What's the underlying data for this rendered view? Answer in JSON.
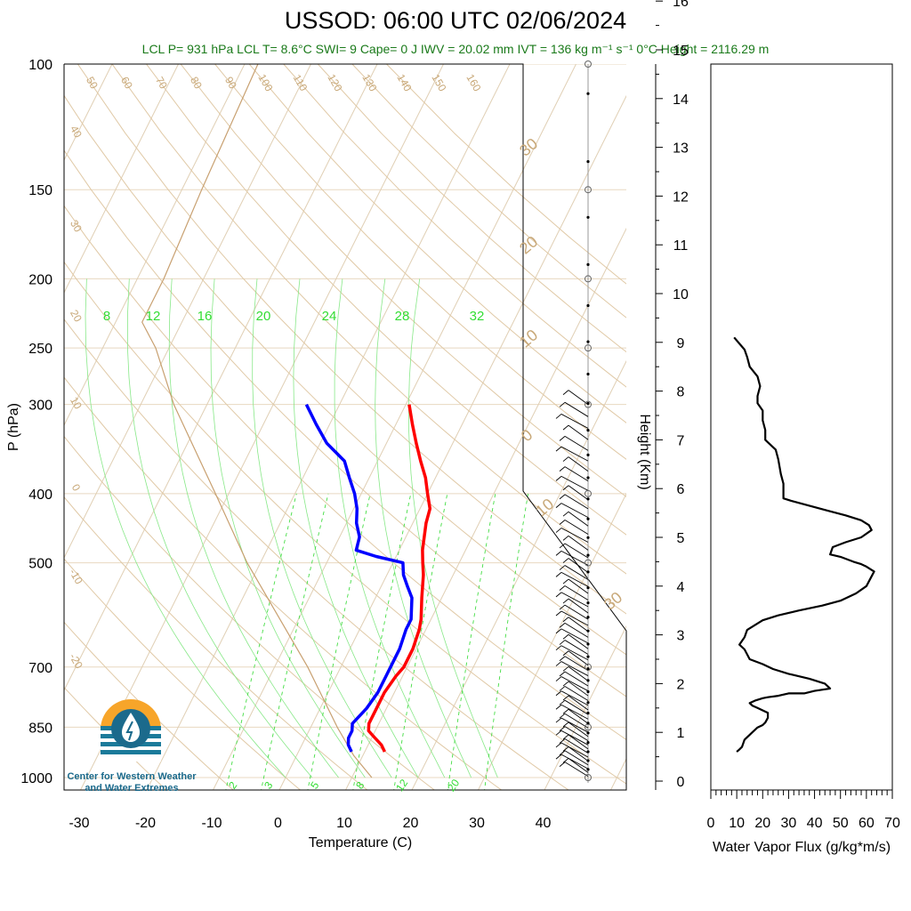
{
  "title": "USSOD: 06:00 UTC 02/06/2024",
  "subtitle": "LCL P= 931 hPa  LCL T= 8.6°C  SWI= 9  Cape= 0 J  IWV = 20.02 mm  IVT = 136 kg m⁻¹ s⁻¹  0°C Height = 2116.29 m",
  "logo": {
    "line1": "Center for Western Weather",
    "line2": "and Water Extremes"
  },
  "colors": {
    "temperature": "#ff0000",
    "dewpoint": "#0000ff",
    "mixing_ratio": "#33dd33",
    "adiabat": "#c8a878",
    "subtitle": "#1a7a1a"
  },
  "chart_data": [
    {
      "type": "line",
      "name": "skew-t",
      "xlabel": "Temperature (C)",
      "ylabel": "P (hPa)",
      "x_ticks": [
        "-30",
        "-20",
        "-10",
        "0",
        "10",
        "20",
        "30",
        "40"
      ],
      "y_ticks": [
        "100",
        "150",
        "200",
        "250",
        "300",
        "400",
        "500",
        "700",
        "850",
        "1000"
      ],
      "xlim": [
        -34,
        52
      ],
      "ylim": [
        1050,
        100
      ],
      "mixing_ratio_labels_top": [
        "8",
        "12",
        "16",
        "20",
        "24",
        "28",
        "32"
      ],
      "mixing_ratio_labels_bottom": [
        "2",
        "3",
        "5",
        "8",
        "12",
        "20"
      ],
      "dry_adiabat_labels_top": [
        "50",
        "60",
        "70",
        "80",
        "90",
        "100",
        "110",
        "120",
        "130",
        "140",
        "150",
        "160"
      ],
      "dry_adiabat_labels_left": [
        "40",
        "30",
        "20",
        "10",
        "0",
        "-10",
        "-20"
      ],
      "moist_adiabat_labels_right": [
        "30",
        "20",
        "10",
        "0",
        "10",
        "30"
      ],
      "series": [
        {
          "p": [
            920,
            900,
            880,
            860,
            840,
            800,
            760,
            720,
            700,
            660,
            620,
            600,
            560,
            520,
            500,
            480,
            440,
            420,
            400,
            380,
            360,
            340,
            320,
            300
          ],
          "t": [
            13,
            12,
            10.5,
            9,
            8.5,
            8.5,
            8.5,
            9,
            9.5,
            9.5,
            9,
            8.5,
            7,
            5.5,
            4.5,
            3.5,
            2,
            1.5,
            0,
            -1.5,
            -3.5,
            -5.5,
            -7.5,
            -9.5
          ]
        },
        {
          "p": [
            920,
            900,
            880,
            860,
            840,
            800,
            760,
            720,
            700,
            660,
            620,
            600,
            560,
            540,
            520,
            500,
            490,
            480,
            460,
            440,
            420,
            400,
            380,
            360,
            340,
            320,
            300
          ],
          "t": [
            8,
            7,
            6.5,
            6.5,
            6,
            7,
            7.5,
            7.5,
            7.5,
            7.5,
            7,
            7,
            5.5,
            4,
            2.5,
            1.5,
            -3,
            -6.5,
            -7,
            -8.5,
            -9.5,
            -11,
            -13,
            -15,
            -19,
            -22,
            -25
          ]
        }
      ]
    },
    {
      "type": "line",
      "name": "water-vapor-flux",
      "xlabel": "Water Vapor Flux (g/kg*m/s)",
      "ylabel": "Height (Km)",
      "x_ticks": [
        "0",
        "10",
        "20",
        "30",
        "40",
        "50",
        "60",
        "70"
      ],
      "y_ticks": [
        "0",
        "1",
        "2",
        "3",
        "4",
        "5",
        "6",
        "7",
        "8",
        "9",
        "10",
        "11",
        "12",
        "13",
        "14",
        "15",
        "16"
      ],
      "xlim": [
        0,
        70
      ],
      "ylim": [
        -0.2,
        16.4
      ],
      "series": [
        {
          "x": [
            10,
            11,
            12,
            13,
            16,
            18,
            20,
            21,
            22,
            22,
            20,
            18,
            16,
            15,
            17,
            20,
            22,
            26,
            30,
            36,
            40,
            46,
            44,
            38,
            30,
            24,
            20,
            15,
            13,
            11,
            13,
            14,
            20,
            26,
            34,
            43,
            50,
            56,
            60,
            62,
            63,
            60,
            58,
            55,
            50,
            46,
            47,
            52,
            58,
            62,
            61,
            58,
            52,
            45,
            38,
            31,
            28,
            28,
            27,
            26,
            25,
            21,
            21,
            20,
            20,
            18,
            18,
            19,
            18,
            15,
            14,
            13,
            9
          ],
          "y": [
            0.6,
            0.65,
            0.7,
            0.85,
            1.0,
            1.1,
            1.15,
            1.2,
            1.3,
            1.4,
            1.45,
            1.5,
            1.55,
            1.6,
            1.65,
            1.7,
            1.72,
            1.75,
            1.8,
            1.8,
            1.85,
            1.9,
            2.0,
            2.1,
            2.2,
            2.3,
            2.4,
            2.5,
            2.7,
            2.8,
            2.95,
            3.1,
            3.3,
            3.4,
            3.5,
            3.6,
            3.7,
            3.85,
            4.0,
            4.2,
            4.3,
            4.4,
            4.45,
            4.5,
            4.6,
            4.65,
            4.8,
            4.9,
            5.0,
            5.15,
            5.25,
            5.35,
            5.45,
            5.55,
            5.65,
            5.75,
            5.8,
            6.1,
            6.3,
            6.6,
            6.8,
            7.0,
            7.2,
            7.4,
            7.6,
            7.75,
            7.9,
            8.1,
            8.3,
            8.5,
            8.7,
            8.85,
            9.1
          ]
        }
      ]
    }
  ]
}
